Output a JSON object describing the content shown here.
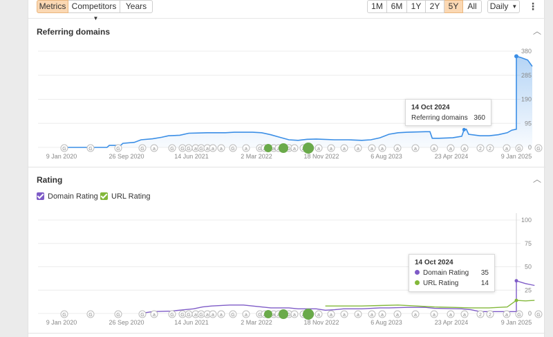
{
  "toolbar": {
    "metrics": "Metrics",
    "competitors": "Competitors",
    "years": "Years",
    "ranges": [
      "1M",
      "6M",
      "1Y",
      "2Y",
      "5Y",
      "All"
    ],
    "active_range": "5Y",
    "interval": "Daily"
  },
  "referring": {
    "title": "Referring domains",
    "y_ticks": [
      "380",
      "285",
      "190",
      "95",
      "0"
    ],
    "x_ticks": [
      "9 Jan 2020",
      "26 Sep 2020",
      "14 Jun 2021",
      "2 Mar 2022",
      "18 Nov 2022",
      "6 Aug 2023",
      "23 Apr 2024",
      "9 Jan 2025"
    ],
    "tooltip": {
      "date": "14 Oct 2024",
      "label": "Referring domains",
      "value": "360"
    }
  },
  "rating": {
    "title": "Rating",
    "legend": [
      "Domain Rating",
      "URL Rating"
    ],
    "y_ticks": [
      "100",
      "75",
      "50",
      "25",
      "0"
    ],
    "x_ticks": [
      "9 Jan 2020",
      "26 Sep 2020",
      "14 Jun 2021",
      "2 Mar 2022",
      "18 Nov 2022",
      "6 Aug 2023",
      "23 Apr 2024",
      "9 Jan 2025"
    ],
    "tooltip": {
      "date": "14 Oct 2024",
      "dr_label": "Domain Rating",
      "dr_value": "35",
      "ur_label": "URL Rating",
      "ur_value": "14"
    }
  },
  "colors": {
    "active_button": "#fbd8b3",
    "referring_line": "#3a8ee6",
    "domain_rating": "#7e5bc7",
    "url_rating": "#83b83a",
    "annotation_green": "#6aaa4a"
  },
  "icons": [
    "kebab-menu-icon",
    "chevron-up-icon",
    "annotation-marker-icon",
    "checkbox-checked-icon"
  ],
  "chart_data": [
    {
      "type": "area",
      "title": "Referring domains",
      "x": [
        "9 Jan 2020",
        "26 Sep 2020",
        "14 Jun 2021",
        "2 Mar 2022",
        "18 Nov 2022",
        "6 Aug 2023",
        "23 Apr 2024",
        "14 Oct 2024",
        "9 Jan 2025"
      ],
      "series": [
        {
          "name": "Referring domains",
          "values": [
            0,
            10,
            68,
            75,
            30,
            78,
            40,
            360,
            320
          ]
        }
      ],
      "ylim": [
        0,
        380
      ],
      "grid": true
    },
    {
      "type": "line",
      "title": "Rating",
      "x": [
        "9 Jan 2020",
        "26 Sep 2020",
        "14 Jun 2021",
        "2 Mar 2022",
        "18 Nov 2022",
        "6 Aug 2023",
        "23 Apr 2024",
        "14 Oct 2024",
        "9 Jan 2025"
      ],
      "series": [
        {
          "name": "Domain Rating",
          "values": [
            null,
            0,
            6,
            8,
            4,
            7,
            2,
            35,
            30
          ]
        },
        {
          "name": "URL Rating",
          "values": [
            null,
            null,
            null,
            null,
            8,
            7,
            4,
            14,
            14
          ]
        }
      ],
      "ylim": [
        0,
        100
      ],
      "grid": true,
      "legend": "top-left"
    }
  ]
}
